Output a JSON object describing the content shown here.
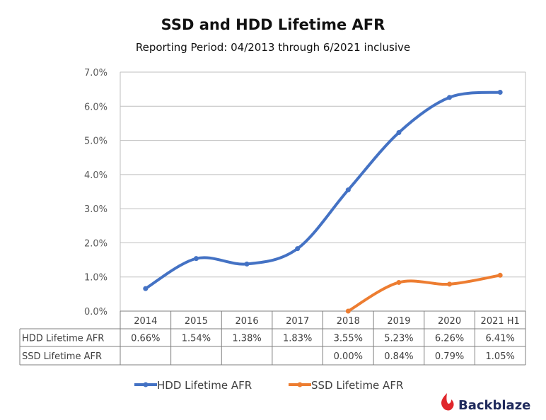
{
  "chart_data": {
    "type": "line",
    "title": "SSD and HDD Lifetime AFR",
    "subtitle": "Reporting Period: 04/2013 through 6/2021 inclusive",
    "categories": [
      "2014",
      "2015",
      "2016",
      "2017",
      "2018",
      "2019",
      "2020",
      "2021 H1"
    ],
    "y_ticks": [
      "0.0%",
      "1.0%",
      "2.0%",
      "3.0%",
      "4.0%",
      "5.0%",
      "6.0%",
      "7.0%"
    ],
    "ylim": [
      0,
      7
    ],
    "grid": true,
    "legend_placement": "bottom",
    "series": [
      {
        "name": "HDD Lifetime AFR",
        "color": "#4472C4",
        "values": [
          0.66,
          1.54,
          1.38,
          1.83,
          3.55,
          5.23,
          6.26,
          6.41
        ],
        "labels": [
          "0.66%",
          "1.54%",
          "1.38%",
          "1.83%",
          "3.55%",
          "5.23%",
          "6.26%",
          "6.41%"
        ]
      },
      {
        "name": "SSD Lifetime AFR",
        "color": "#ED7D31",
        "values": [
          null,
          null,
          null,
          null,
          0.0,
          0.84,
          0.79,
          1.05
        ],
        "labels": [
          "",
          "",
          "",
          "",
          "0.00%",
          "0.84%",
          "0.79%",
          "1.05%"
        ]
      }
    ]
  },
  "logo": {
    "text": "Backblaze",
    "color": "#1f2a5c",
    "flame_color": "#e0262b"
  }
}
